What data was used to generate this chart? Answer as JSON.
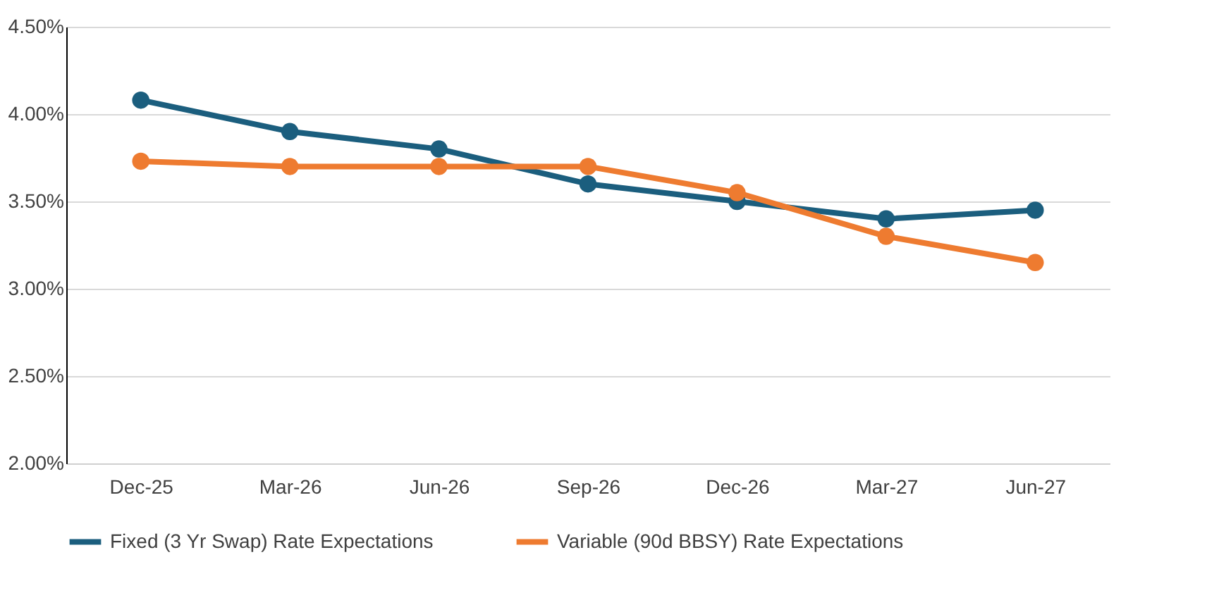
{
  "chart_data": {
    "type": "line",
    "categories": [
      "Dec-25",
      "Mar-26",
      "Jun-26",
      "Sep-26",
      "Dec-26",
      "Mar-27",
      "Jun-27"
    ],
    "series": [
      {
        "name": "Fixed (3 Yr Swap) Rate Expectations",
        "color": "#1b5e7e",
        "values": [
          4.08,
          3.9,
          3.8,
          3.6,
          3.5,
          3.4,
          3.45
        ]
      },
      {
        "name": "Variable (90d BBSY) Rate Expectations",
        "color": "#ee7b30",
        "values": [
          3.73,
          3.7,
          3.7,
          3.7,
          3.55,
          3.3,
          3.15
        ]
      }
    ],
    "ylim": [
      2.0,
      4.5
    ],
    "yticks": [
      {
        "value": 2.0,
        "label": "2.00%"
      },
      {
        "value": 2.5,
        "label": "2.50%"
      },
      {
        "value": 3.0,
        "label": "3.00%"
      },
      {
        "value": 3.5,
        "label": "3.50%"
      },
      {
        "value": 4.0,
        "label": "4.00%"
      },
      {
        "value": 4.5,
        "label": "4.50%"
      }
    ],
    "grid": "y",
    "legend": "bottom",
    "marker": "circle",
    "line_style": "solid"
  }
}
